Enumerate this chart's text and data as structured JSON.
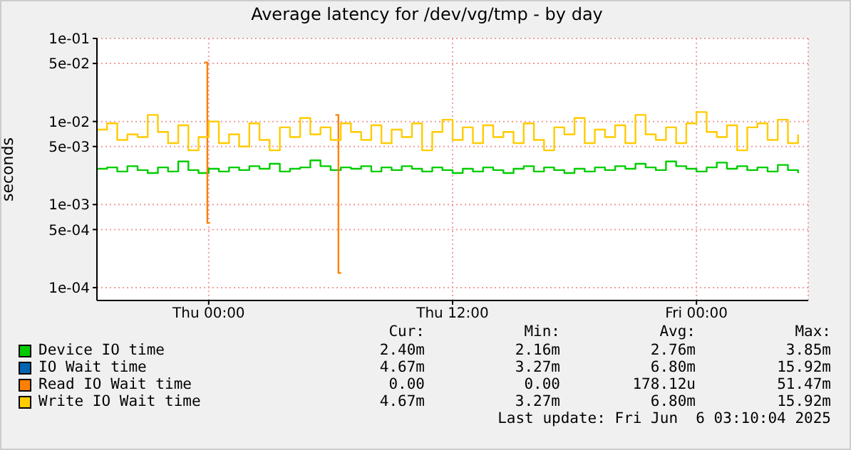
{
  "chart_data": {
    "type": "step",
    "title": "Average latency for /dev/vg/tmp - by day",
    "ylabel": "seconds",
    "log": "y",
    "grid": true,
    "legend": "bottom",
    "marker": "none",
    "xlim": [
      "2025-06-04T18:30",
      "2025-06-06T05:30"
    ],
    "xticks": [
      {
        "value": "2025-06-05T00:00",
        "label": "Thu 00:00"
      },
      {
        "value": "2025-06-05T12:00",
        "label": "Thu 12:00"
      },
      {
        "value": "2025-06-06T00:00",
        "label": "Fri 00:00"
      }
    ],
    "ylim": [
      7e-05,
      0.1
    ],
    "yticks": [
      {
        "value": 0.1,
        "label": "1e-01"
      },
      {
        "value": 0.05,
        "label": "5e-02"
      },
      {
        "value": 0.01,
        "label": "1e-02"
      },
      {
        "value": 0.005,
        "label": "5e-03"
      },
      {
        "value": 0.001,
        "label": "1e-03"
      },
      {
        "value": 0.0005,
        "label": "5e-04"
      },
      {
        "value": 0.0001,
        "label": "1e-04"
      }
    ],
    "x": [
      "2025-06-04T18:30",
      "2025-06-04T19:00",
      "2025-06-04T19:30",
      "2025-06-04T20:00",
      "2025-06-04T20:30",
      "2025-06-04T21:00",
      "2025-06-04T21:30",
      "2025-06-04T22:00",
      "2025-06-04T22:30",
      "2025-06-04T23:00",
      "2025-06-04T23:30",
      "2025-06-05T00:00",
      "2025-06-05T00:30",
      "2025-06-05T01:00",
      "2025-06-05T01:30",
      "2025-06-05T02:00",
      "2025-06-05T02:30",
      "2025-06-05T03:00",
      "2025-06-05T03:30",
      "2025-06-05T04:00",
      "2025-06-05T04:30",
      "2025-06-05T05:00",
      "2025-06-05T05:30",
      "2025-06-05T06:00",
      "2025-06-05T06:30",
      "2025-06-05T07:00",
      "2025-06-05T07:30",
      "2025-06-05T08:00",
      "2025-06-05T08:30",
      "2025-06-05T09:00",
      "2025-06-05T09:30",
      "2025-06-05T10:00",
      "2025-06-05T10:30",
      "2025-06-05T11:00",
      "2025-06-05T11:30",
      "2025-06-05T12:00",
      "2025-06-05T12:30",
      "2025-06-05T13:00",
      "2025-06-05T13:30",
      "2025-06-05T14:00",
      "2025-06-05T14:30",
      "2025-06-05T15:00",
      "2025-06-05T15:30",
      "2025-06-05T16:00",
      "2025-06-05T16:30",
      "2025-06-05T17:00",
      "2025-06-05T17:30",
      "2025-06-05T18:00",
      "2025-06-05T18:30",
      "2025-06-05T19:00",
      "2025-06-05T19:30",
      "2025-06-05T20:00",
      "2025-06-05T20:30",
      "2025-06-05T21:00",
      "2025-06-05T21:30",
      "2025-06-05T22:00",
      "2025-06-05T22:30",
      "2025-06-05T23:00",
      "2025-06-05T23:30",
      "2025-06-06T00:00",
      "2025-06-06T00:30",
      "2025-06-06T01:00",
      "2025-06-06T01:30",
      "2025-06-06T02:00",
      "2025-06-06T02:30",
      "2025-06-06T03:00",
      "2025-06-06T03:30",
      "2025-06-06T04:00",
      "2025-06-06T04:30",
      "2025-06-06T05:00"
    ],
    "series": [
      {
        "name": "Device IO time",
        "color": "#00cc00",
        "values": [
          0.0027,
          0.0028,
          0.0025,
          0.0029,
          0.0026,
          0.0024,
          0.0028,
          0.0025,
          0.0033,
          0.0026,
          0.0024,
          0.0027,
          0.0025,
          0.0028,
          0.0026,
          0.0029,
          0.0027,
          0.0031,
          0.0025,
          0.0027,
          0.0028,
          0.0034,
          0.0029,
          0.0026,
          0.0028,
          0.0027,
          0.0029,
          0.0025,
          0.0028,
          0.0026,
          0.0029,
          0.0027,
          0.0025,
          0.0028,
          0.0026,
          0.0024,
          0.0027,
          0.0025,
          0.0028,
          0.0026,
          0.0024,
          0.0027,
          0.0029,
          0.0025,
          0.0028,
          0.0026,
          0.0024,
          0.0027,
          0.0025,
          0.0028,
          0.0026,
          0.0029,
          0.0027,
          0.0031,
          0.0028,
          0.0026,
          0.0033,
          0.0029,
          0.0027,
          0.0025,
          0.0028,
          0.0032,
          0.0027,
          0.0029,
          0.0026,
          0.0028,
          0.0025,
          0.003,
          0.0026,
          0.0024
        ]
      },
      {
        "name": "IO Wait time",
        "color": "#0066b3",
        "values": [
          null,
          null,
          null,
          null,
          null,
          null,
          null,
          null,
          null,
          null,
          null,
          null,
          null,
          null,
          null,
          null,
          null,
          null,
          null,
          null,
          null,
          null,
          null,
          null,
          null,
          null,
          null,
          null,
          null,
          null,
          null,
          null,
          null,
          null,
          null,
          null,
          null,
          null,
          null,
          null,
          null,
          null,
          null,
          null,
          null,
          null,
          null,
          null,
          null,
          null,
          null,
          null,
          null,
          null,
          null,
          null,
          null,
          null,
          null,
          null,
          null,
          null,
          null,
          null,
          null,
          null,
          null,
          null,
          null,
          null
        ]
      },
      {
        "name": "Read IO Wait time",
        "color": "#ff8000",
        "x": [
          "2025-06-04T23:47",
          "2025-06-04T23:56",
          "2025-06-05T00:04",
          "2025-06-05T00:05",
          "2025-06-05T06:14",
          "2025-06-05T06:23",
          "2025-06-05T06:31"
        ],
        "values": [
          0.05147,
          0.0006,
          0.0006,
          null,
          0.012,
          0.00015,
          0.00015
        ]
      },
      {
        "name": "Write IO Wait time",
        "color": "#ffcc00",
        "values": [
          0.008,
          0.0095,
          0.006,
          0.007,
          0.0065,
          0.012,
          0.0075,
          0.0055,
          0.009,
          0.0045,
          0.0065,
          0.01,
          0.0055,
          0.007,
          0.005,
          0.0095,
          0.006,
          0.0045,
          0.0085,
          0.0065,
          0.011,
          0.007,
          0.0085,
          0.006,
          0.0095,
          0.0075,
          0.006,
          0.009,
          0.0055,
          0.008,
          0.0065,
          0.0095,
          0.0045,
          0.0075,
          0.0105,
          0.006,
          0.0085,
          0.0055,
          0.009,
          0.0065,
          0.0075,
          0.0055,
          0.0095,
          0.006,
          0.0045,
          0.0085,
          0.007,
          0.011,
          0.0055,
          0.008,
          0.0065,
          0.009,
          0.0055,
          0.012,
          0.007,
          0.006,
          0.0085,
          0.0055,
          0.0095,
          0.013,
          0.0075,
          0.0065,
          0.009,
          0.0045,
          0.0085,
          0.0095,
          0.006,
          0.0105,
          0.0055,
          0.007
        ]
      }
    ],
    "annotations": [
      "Cur:",
      "Min:",
      "Avg:",
      "Max:",
      "2.40m",
      "2.16m",
      "2.76m",
      "3.85m",
      "4.67m",
      "3.27m",
      "6.80m",
      "15.92m",
      "0.00",
      "0.00",
      "178.12u",
      "51.47m",
      "4.67m",
      "3.27m",
      "6.80m",
      "15.92m",
      "Last update: Fri Jun  6 03:10:04 2025"
    ]
  }
}
